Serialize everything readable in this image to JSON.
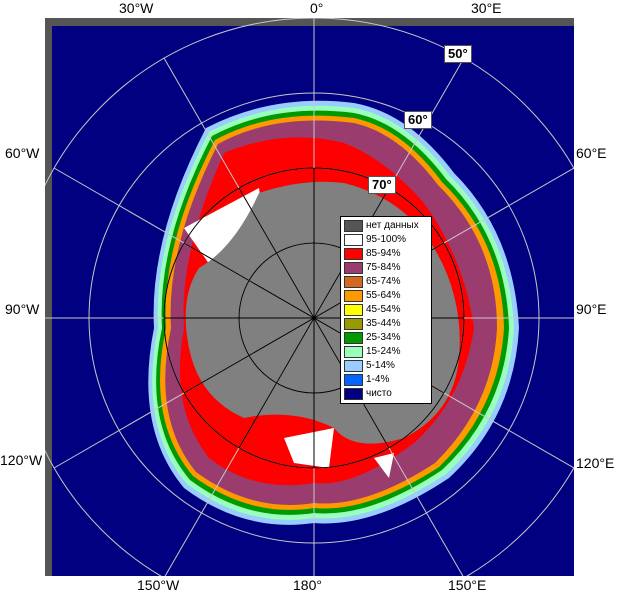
{
  "labels": {
    "top": [
      "30°W",
      "0°",
      "30°E"
    ],
    "bottom": [
      "150°W",
      "180°",
      "150°E"
    ],
    "left": [
      "60°W",
      "90°W",
      "120°W"
    ],
    "right": [
      "60°E",
      "90°E",
      "120°E"
    ],
    "lat": [
      "50°",
      "60°",
      "70°"
    ]
  },
  "legend": [
    {
      "label": "нет данных",
      "color": "#555555"
    },
    {
      "label": "95-100%",
      "color": "#ffffff"
    },
    {
      "label": "85-94%",
      "color": "#ff0000"
    },
    {
      "label": "75-84%",
      "color": "#9b3c6e"
    },
    {
      "label": "65-74%",
      "color": "#d2691e"
    },
    {
      "label": "55-64%",
      "color": "#ff9900"
    },
    {
      "label": "45-54%",
      "color": "#ffff00"
    },
    {
      "label": "35-44%",
      "color": "#999900"
    },
    {
      "label": "25-34%",
      "color": "#009900"
    },
    {
      "label": "15-24%",
      "color": "#99ffbb"
    },
    {
      "label": "5-14%",
      "color": "#99ccff"
    },
    {
      "label": "1-4%",
      "color": "#0066ff"
    },
    {
      "label": "чисто",
      "color": "#000080"
    }
  ],
  "colors": {
    "ocean": "#000080",
    "land": "#808080",
    "frame": "#555555",
    "grid": "#c8c8c8"
  }
}
